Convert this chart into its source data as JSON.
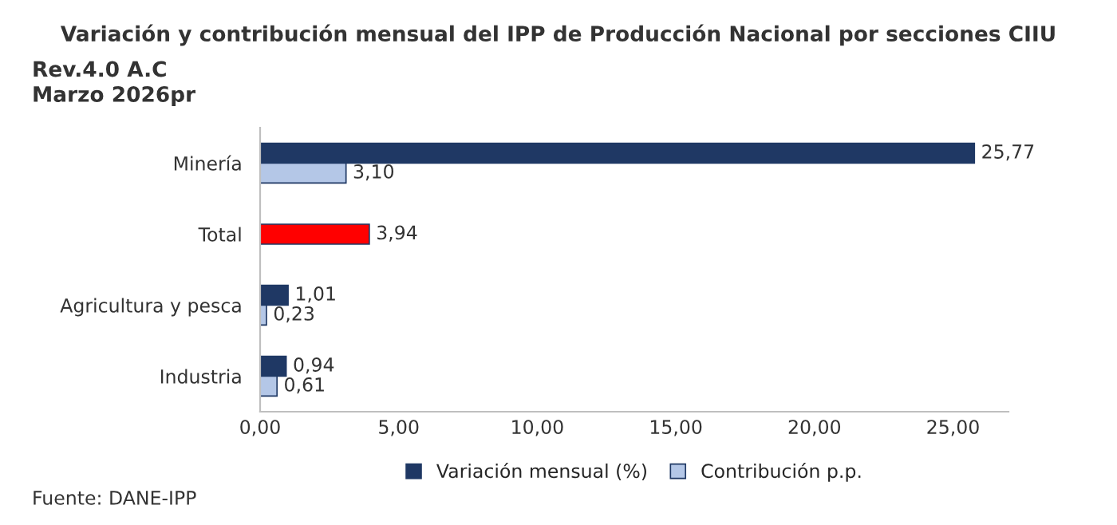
{
  "chart_data": {
    "type": "bar",
    "orientation": "horizontal",
    "title": "Variación y contribución mensual del IPP de Producción Nacional por secciones CIIU",
    "subtitle": "Rev.4.0 A.C\nMarzo 2026pr",
    "categories": [
      "Minería",
      "Total",
      "Agricultura y pesca",
      "Industria"
    ],
    "series": [
      {
        "name": "Variación mensual (%)",
        "color": "#1f3864",
        "colors": [
          "#1f3864",
          "#ff0000",
          "#1f3864",
          "#1f3864"
        ],
        "values": [
          25.77,
          3.94,
          1.01,
          0.94
        ],
        "value_labels": [
          "25,77",
          "3,94",
          "1,01",
          "0,94"
        ]
      },
      {
        "name": "Contribución p.p.",
        "color": "#b4c7e7",
        "values": [
          3.1,
          null,
          0.23,
          0.61
        ],
        "value_labels": [
          "3,10",
          null,
          "0,23",
          "0,61"
        ]
      }
    ],
    "xlim": [
      0,
      27
    ],
    "xticks": [
      {
        "value": 0,
        "label": "0,00"
      },
      {
        "value": 5,
        "label": "5,00"
      },
      {
        "value": 10,
        "label": "10,00"
      },
      {
        "value": 15,
        "label": "15,00"
      },
      {
        "value": 20,
        "label": "20,00"
      },
      {
        "value": 25,
        "label": "25,00"
      }
    ],
    "grid": false,
    "legend": "bottom",
    "annotations": [
      "Fuente: DANE-IPP"
    ]
  }
}
